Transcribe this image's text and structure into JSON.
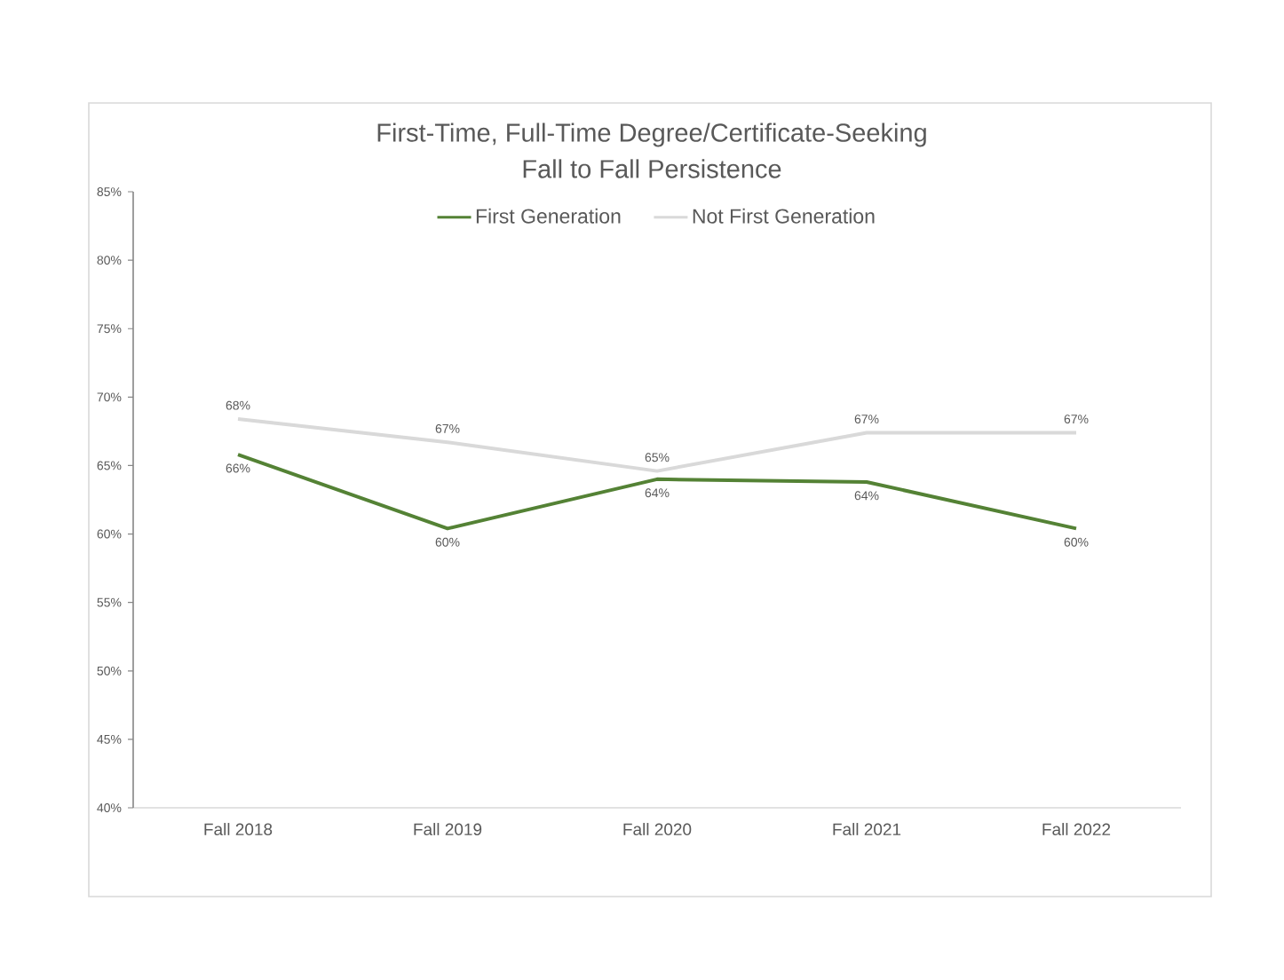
{
  "chart_data": {
    "type": "line",
    "title": "First-Time, Full-Time Degree/Certificate-Seeking",
    "subtitle": "Fall to Fall Persistence",
    "categories": [
      "Fall 2018",
      "Fall 2019",
      "Fall 2020",
      "Fall 2021",
      "Fall 2022"
    ],
    "series": [
      {
        "name": "First Generation",
        "color": "#548235",
        "values": [
          65.8,
          60.4,
          64.0,
          63.8,
          60.4
        ],
        "value_labels": [
          "66%",
          "60%",
          "64%",
          "64%",
          "60%"
        ]
      },
      {
        "name": "Not First Generation",
        "color": "#d9d9d9",
        "values": [
          68.4,
          66.7,
          64.6,
          67.4,
          67.4
        ],
        "value_labels": [
          "68%",
          "67%",
          "65%",
          "67%",
          "67%"
        ]
      }
    ],
    "ylim": [
      40,
      85
    ],
    "yticks": [
      {
        "value": 40,
        "label": "40%"
      },
      {
        "value": 45,
        "label": "45%"
      },
      {
        "value": 50,
        "label": "50%"
      },
      {
        "value": 55,
        "label": "55%"
      },
      {
        "value": 60,
        "label": "60%"
      },
      {
        "value": 65,
        "label": "65%"
      },
      {
        "value": 70,
        "label": "70%"
      },
      {
        "value": 75,
        "label": "75%"
      },
      {
        "value": 80,
        "label": "80%"
      },
      {
        "value": 85,
        "label": "85%"
      }
    ],
    "legend": "top"
  }
}
